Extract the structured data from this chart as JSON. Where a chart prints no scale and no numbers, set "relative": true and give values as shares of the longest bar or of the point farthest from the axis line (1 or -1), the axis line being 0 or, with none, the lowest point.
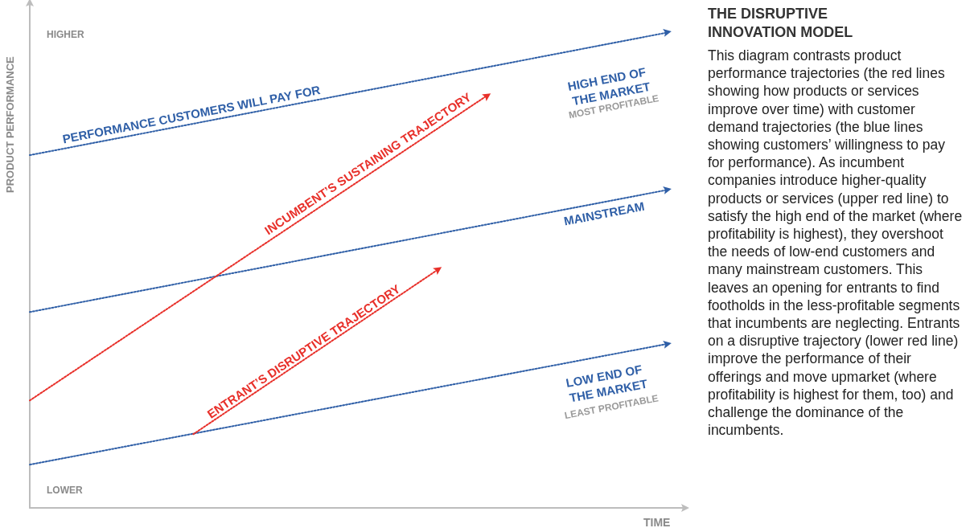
{
  "chart_data": {
    "type": "line",
    "relative": true,
    "title": "THE DISRUPTIVE INNOVATION MODEL",
    "xlabel": "TIME",
    "ylabel": "PRODUCT PERFORMANCE",
    "grid": false,
    "legend": false,
    "line_style": "dotted",
    "categories": [
      null,
      null,
      null,
      null,
      null,
      null,
      null,
      null,
      null,
      null,
      null,
      null,
      null,
      null,
      null,
      null,
      null,
      null,
      null,
      null,
      null,
      null,
      null,
      null,
      null,
      null,
      null,
      null,
      null,
      null,
      null,
      null,
      null,
      null,
      null,
      null,
      null,
      null,
      null,
      null,
      null
    ],
    "series": [
      {
        "name": "PERFORMANCE CUSTOMERS WILL PAY FOR",
        "color": "#2f5fa7",
        "values": [
          0.742,
          null,
          null,
          null,
          null,
          null,
          null,
          null,
          null,
          null,
          null,
          null,
          null,
          null,
          null,
          null,
          null,
          null,
          null,
          null,
          null,
          null,
          null,
          null,
          null,
          null,
          null,
          null,
          null,
          null,
          null,
          null,
          null,
          null,
          null,
          null,
          null,
          null,
          null,
          1,
          null
        ]
      },
      {
        "name": "MAINSTREAM",
        "color": "#2f5fa7",
        "values": [
          0.412,
          null,
          null,
          null,
          null,
          null,
          null,
          null,
          null,
          null,
          null,
          null,
          null,
          null,
          null,
          null,
          null,
          null,
          null,
          null,
          null,
          null,
          null,
          null,
          null,
          null,
          null,
          null,
          null,
          null,
          null,
          null,
          null,
          null,
          null,
          null,
          null,
          null,
          null,
          0.669,
          null
        ]
      },
      {
        "name": "LOW END OF THE MARKET",
        "color": "#2f5fa7",
        "values": [
          0.091,
          null,
          null,
          null,
          null,
          null,
          null,
          null,
          null,
          null,
          null,
          null,
          null,
          null,
          null,
          null,
          null,
          null,
          null,
          null,
          null,
          null,
          null,
          null,
          null,
          null,
          null,
          null,
          null,
          null,
          null,
          null,
          null,
          null,
          null,
          null,
          null,
          null,
          null,
          0.345,
          null
        ]
      },
      {
        "name": "INCUMBENT’S SUSTAINING TRAJECTORY",
        "color": "#e8302a",
        "values": [
          0.226,
          null,
          null,
          null,
          null,
          null,
          null,
          null,
          null,
          null,
          null,
          null,
          null,
          null,
          null,
          null,
          null,
          null,
          null,
          null,
          null,
          null,
          null,
          null,
          null,
          null,
          null,
          null,
          0.868,
          null,
          null,
          null,
          null,
          null,
          null,
          null,
          null,
          null,
          null,
          null,
          null
        ]
      },
      {
        "name": "ENTRANT’S DISRUPTIVE TRAJECTORY",
        "color": "#e8302a",
        "values": [
          null,
          null,
          null,
          null,
          null,
          null,
          null,
          null,
          null,
          null,
          0.155,
          null,
          null,
          null,
          null,
          null,
          null,
          null,
          null,
          null,
          null,
          null,
          null,
          null,
          null,
          0.502,
          null,
          null,
          null,
          null,
          null,
          null,
          null,
          null,
          null,
          null,
          null,
          null,
          null,
          null,
          null
        ]
      }
    ],
    "annotations": [
      "HIGHER",
      "LOWER",
      "HIGH END OF THE MARKET",
      "MOST PROFITABLE",
      "LEAST PROFITABLE",
      "This diagram contrasts product performance trajectories (the red lines showing how products or services improve over time) with customer demand trajectories (the blue lines showing customers’ willingness to pay for performance). As incumbent companies introduce higher-quality products or services (upper red line) to satisfy the high end of the market (where profitability is highest), they overshoot the needs of low-end customers and many mainstream customers. This leaves an opening for entrants to find footholds in the less-profitable segments that incumbents are neglecting. Entrants on a disruptive trajectory (lower red line) improve the performance of their offerings and move upmarket (where profitability is highest for them, too) and challenge the dominance of the incumbents."
    ]
  }
}
